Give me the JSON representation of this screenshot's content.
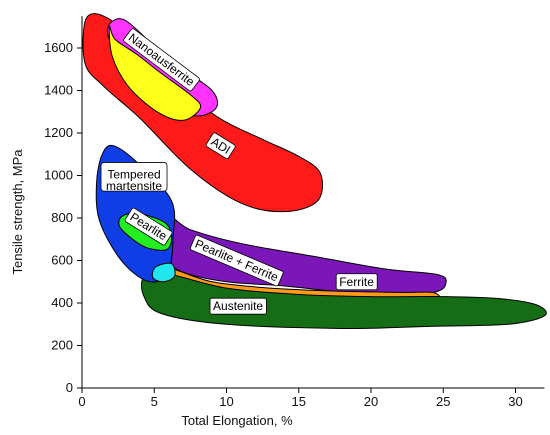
{
  "chart_data": {
    "type": "area",
    "xlabel": "Total Elongation, %",
    "ylabel": "Tensile strength, MPa",
    "xlim": [
      0,
      32
    ],
    "ylim": [
      0,
      1750
    ],
    "x_ticks": [
      "0",
      "5",
      "10",
      "15",
      "20",
      "25",
      "30"
    ],
    "y_ticks": [
      "0",
      "200",
      "400",
      "600",
      "800",
      "1000",
      "1200",
      "1400",
      "1600"
    ],
    "grid": false,
    "regions": [
      {
        "name": "ADI",
        "color": "#ff1a1a",
        "outline": [
          [
            0.3,
            1740
          ],
          [
            1.8,
            1740
          ],
          [
            4,
            1600
          ],
          [
            6.5,
            1430
          ],
          [
            9.5,
            1270
          ],
          [
            12.5,
            1170
          ],
          [
            15,
            1090
          ],
          [
            16.5,
            1010
          ],
          [
            16.3,
            880
          ],
          [
            14,
            830
          ],
          [
            11,
            870
          ],
          [
            7.5,
            1030
          ],
          [
            4,
            1270
          ],
          [
            1.5,
            1420
          ],
          [
            0.2,
            1530
          ]
        ]
      },
      {
        "name": "Nanoausferrite",
        "color": "#ff33ff",
        "outline": [
          [
            2,
            1720
          ],
          [
            3,
            1730
          ],
          [
            5,
            1610
          ],
          [
            7,
            1500
          ],
          [
            9,
            1400
          ],
          [
            9.3,
            1320
          ],
          [
            8,
            1280
          ],
          [
            6.2,
            1320
          ],
          [
            4,
            1440
          ],
          [
            2.5,
            1570
          ],
          [
            1.8,
            1660
          ]
        ]
      },
      {
        "name": "Nanoausferrite-core",
        "color": "#ffff1a",
        "outline": [
          [
            1.9,
            1700
          ],
          [
            2.3,
            1640
          ],
          [
            3.8,
            1570
          ],
          [
            5.5,
            1480
          ],
          [
            7.5,
            1380
          ],
          [
            8.2,
            1320
          ],
          [
            7,
            1260
          ],
          [
            5.2,
            1300
          ],
          [
            3.2,
            1420
          ],
          [
            2.1,
            1560
          ]
        ]
      },
      {
        "name": "Pearlite + Ferrite",
        "color": "#7b16b8",
        "outline": [
          [
            6,
            800
          ],
          [
            7.5,
            745
          ],
          [
            11,
            680
          ],
          [
            16,
            620
          ],
          [
            21,
            560
          ],
          [
            24.5,
            535
          ],
          [
            25.2,
            500
          ],
          [
            24.3,
            450
          ],
          [
            20,
            440
          ],
          [
            14,
            480
          ],
          [
            10,
            500
          ],
          [
            7,
            545
          ],
          [
            5.8,
            620
          ]
        ]
      },
      {
        "name": "Austenite-band",
        "color": "#ff9a1a",
        "outline": [
          [
            6.2,
            560
          ],
          [
            9,
            500
          ],
          [
            13,
            470
          ],
          [
            18,
            455
          ],
          [
            22,
            450
          ],
          [
            24.5,
            445
          ],
          [
            24.5,
            380
          ],
          [
            21,
            375
          ],
          [
            16,
            395
          ],
          [
            11,
            430
          ],
          [
            7.5,
            480
          ]
        ]
      },
      {
        "name": "Austenite",
        "color": "#156e15",
        "outline": [
          [
            4.3,
            520
          ],
          [
            6,
            535
          ],
          [
            10,
            470
          ],
          [
            15,
            440
          ],
          [
            20,
            430
          ],
          [
            25,
            430
          ],
          [
            29,
            420
          ],
          [
            31.5,
            390
          ],
          [
            32,
            340
          ],
          [
            29.5,
            300
          ],
          [
            24,
            290
          ],
          [
            18,
            280
          ],
          [
            10,
            300
          ],
          [
            5.5,
            350
          ],
          [
            4.3,
            430
          ]
        ]
      },
      {
        "name": "Tempered martensite",
        "color": "#0f3ee6",
        "outline": [
          [
            1.4,
            1100
          ],
          [
            2.2,
            1140
          ],
          [
            4,
            1050
          ],
          [
            6.2,
            880
          ],
          [
            6.3,
            700
          ],
          [
            6,
            540
          ],
          [
            5.2,
            500
          ],
          [
            4,
            520
          ],
          [
            2.5,
            620
          ],
          [
            1.2,
            790
          ],
          [
            1,
            960
          ]
        ]
      },
      {
        "name": "Pearlite",
        "color": "#22ee22",
        "outline": [
          [
            2.8,
            810
          ],
          [
            4,
            820
          ],
          [
            5.8,
            775
          ],
          [
            6.2,
            700
          ],
          [
            5.8,
            650
          ],
          [
            4.5,
            660
          ],
          [
            3.5,
            700
          ],
          [
            2.6,
            760
          ]
        ]
      },
      {
        "name": "Cyan",
        "color": "#22e6ee",
        "outline": [
          [
            5.1,
            570
          ],
          [
            6.2,
            585
          ],
          [
            6.4,
            525
          ],
          [
            5.6,
            500
          ],
          [
            4.9,
            520
          ]
        ]
      }
    ],
    "labels": [
      {
        "text": "Nanoausferrite",
        "x": 5.5,
        "y": 1545,
        "rotate": 37,
        "boxed": true
      },
      {
        "text": "ADI",
        "x": 9.6,
        "y": 1140,
        "rotate": 32,
        "boxed": true
      },
      {
        "text": "Tempered",
        "x": 3.6,
        "y": 1005,
        "rotate": 0,
        "boxed": true,
        "block": "tm"
      },
      {
        "text": "martensite",
        "x": 3.6,
        "y": 950,
        "rotate": 0,
        "boxed": false,
        "block": "tm"
      },
      {
        "text": "Pearlite",
        "x": 4.6,
        "y": 760,
        "rotate": 32,
        "boxed": true
      },
      {
        "text": "Pearlite + Ferrite",
        "x": 10.7,
        "y": 600,
        "rotate": 23,
        "boxed": true
      },
      {
        "text": "Ferrite",
        "x": 19,
        "y": 500,
        "rotate": 0,
        "boxed": true
      },
      {
        "text": "Austenite",
        "x": 10.8,
        "y": 385,
        "rotate": 0,
        "boxed": true
      }
    ]
  }
}
